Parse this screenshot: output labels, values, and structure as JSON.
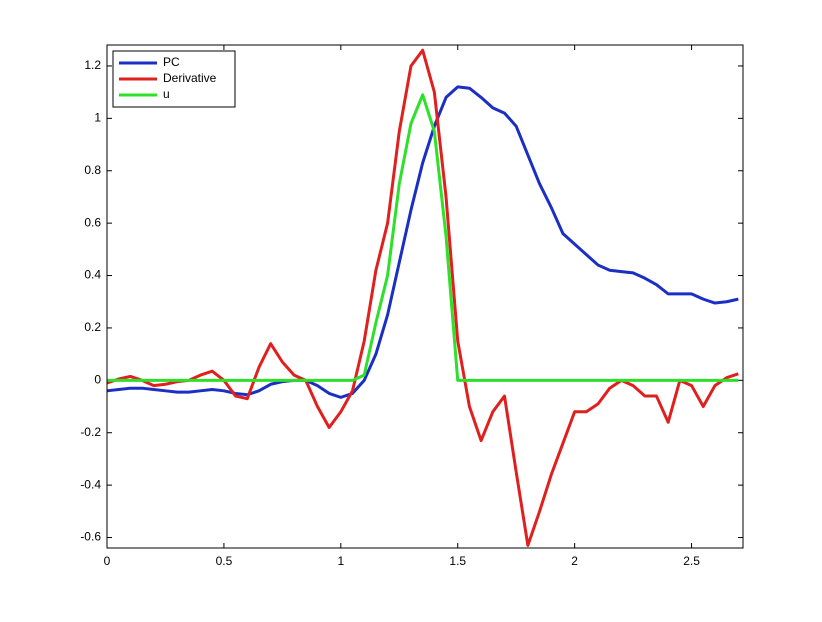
{
  "chart_data": {
    "type": "line",
    "x": [
      0,
      0.05,
      0.1,
      0.15,
      0.2,
      0.25,
      0.3,
      0.35,
      0.4,
      0.45,
      0.5,
      0.55,
      0.6,
      0.65,
      0.7,
      0.75,
      0.8,
      0.85,
      0.9,
      0.95,
      1.0,
      1.05,
      1.1,
      1.15,
      1.2,
      1.25,
      1.3,
      1.35,
      1.4,
      1.45,
      1.5,
      1.55,
      1.6,
      1.65,
      1.7,
      1.75,
      1.8,
      1.85,
      1.9,
      1.95,
      2.0,
      2.05,
      2.1,
      2.15,
      2.2,
      2.25,
      2.3,
      2.35,
      2.4,
      2.45,
      2.5,
      2.55,
      2.6,
      2.65,
      2.7
    ],
    "series": [
      {
        "name": "PC",
        "color": "#1c2fc4",
        "values": [
          -0.04,
          -0.035,
          -0.03,
          -0.03,
          -0.035,
          -0.04,
          -0.045,
          -0.045,
          -0.04,
          -0.035,
          -0.04,
          -0.05,
          -0.055,
          -0.04,
          -0.015,
          -0.005,
          0,
          0,
          -0.02,
          -0.05,
          -0.065,
          -0.05,
          0,
          0.1,
          0.25,
          0.45,
          0.65,
          0.83,
          0.97,
          1.08,
          1.12,
          1.115,
          1.08,
          1.04,
          1.02,
          0.97,
          0.86,
          0.75,
          0.66,
          0.56,
          0.52,
          0.48,
          0.44,
          0.42,
          0.415,
          0.41,
          0.39,
          0.365,
          0.33,
          0.33,
          0.33,
          0.31,
          0.295,
          0.3,
          0.31
        ]
      },
      {
        "name": "Derivative",
        "color": "#e0201e",
        "values": [
          -0.01,
          0.005,
          0.015,
          0,
          -0.02,
          -0.015,
          -0.005,
          0,
          0.02,
          0.035,
          0,
          -0.06,
          -0.07,
          0.05,
          0.14,
          0.07,
          0.02,
          0,
          -0.1,
          -0.18,
          -0.12,
          -0.04,
          0.15,
          0.42,
          0.6,
          0.95,
          1.2,
          1.26,
          1.1,
          0.7,
          0.15,
          -0.1,
          -0.23,
          -0.12,
          -0.06,
          -0.35,
          -0.63,
          -0.5,
          -0.36,
          -0.24,
          -0.12,
          -0.12,
          -0.09,
          -0.03,
          0,
          -0.02,
          -0.06,
          -0.06,
          -0.16,
          0,
          -0.02,
          -0.1,
          -0.02,
          0.01,
          0.025
        ]
      },
      {
        "name": "u",
        "color": "#2ee02a",
        "values": [
          0,
          0,
          0,
          0,
          0,
          0,
          0,
          0,
          0,
          0,
          0,
          0,
          0,
          0,
          0,
          0,
          0,
          0,
          0,
          0,
          0,
          0,
          0.02,
          0.22,
          0.4,
          0.75,
          0.98,
          1.09,
          0.95,
          0.55,
          0,
          0,
          0,
          0,
          0,
          0,
          0,
          0,
          0,
          0,
          0,
          0,
          0,
          0,
          0,
          0,
          0,
          0,
          0,
          0,
          0,
          0,
          0,
          0,
          0
        ]
      }
    ],
    "xlim": [
      0,
      2.72
    ],
    "ylim": [
      -0.64,
      1.28
    ],
    "xticks": [
      0,
      0.5,
      1,
      1.5,
      2,
      2.5
    ],
    "yticks": [
      -0.6,
      -0.4,
      -0.2,
      0,
      0.2,
      0.4,
      0.6,
      0.8,
      1,
      1.2
    ],
    "legend": "northwest"
  }
}
